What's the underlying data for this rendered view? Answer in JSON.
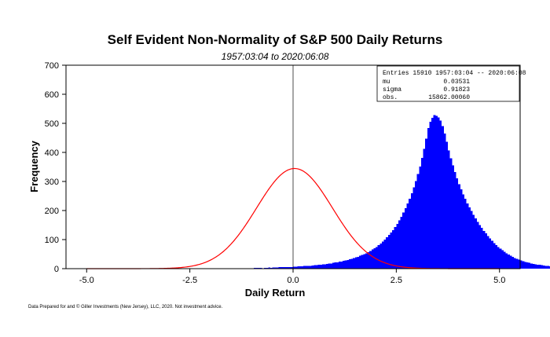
{
  "chart_data": {
    "type": "bar",
    "title": "Self Evident Non-Normality of S&P 500 Daily Returns",
    "subtitle": "1957:03:04 to 2020:06:08",
    "xlabel": "Daily Return",
    "ylabel": "Frequency",
    "xlim": [
      -5.5,
      5.5
    ],
    "ylim": [
      0,
      700
    ],
    "xticks": [
      -5.0,
      -2.5,
      0.0,
      2.5,
      5.0
    ],
    "xtick_labels": [
      "-5.0",
      "-2.5",
      "0.0",
      "2.5",
      "5.0"
    ],
    "yticks": [
      0,
      100,
      200,
      300,
      400,
      500,
      600,
      700
    ],
    "ytick_labels": [
      "0",
      "100",
      "200",
      "300",
      "400",
      "500",
      "600",
      "700"
    ],
    "bin_width": 0.05,
    "bin_start": -5.0,
    "counts": [
      0,
      0,
      1,
      0,
      0,
      0,
      0,
      0,
      0,
      1,
      0,
      0,
      0,
      0,
      0,
      0,
      0,
      0,
      0,
      0,
      1,
      0,
      0,
      0,
      0,
      0,
      0,
      0,
      0,
      0,
      1,
      0,
      0,
      0,
      0,
      0,
      0,
      0,
      0,
      0,
      0,
      1,
      0,
      0,
      0,
      0,
      0,
      0,
      0,
      0,
      0,
      0,
      0,
      0,
      1,
      0,
      0,
      0,
      0,
      1,
      1,
      0,
      1,
      1,
      1,
      0,
      1,
      0,
      1,
      1,
      0,
      1,
      1,
      2,
      2,
      1,
      2,
      1,
      2,
      2,
      2,
      3,
      3,
      3,
      3,
      2,
      3,
      3,
      4,
      3,
      4,
      4,
      4,
      5,
      5,
      5,
      6,
      5,
      6,
      6,
      7,
      7,
      8,
      8,
      8,
      9,
      9,
      10,
      10,
      11,
      12,
      12,
      13,
      14,
      15,
      15,
      16,
      17,
      18,
      20,
      21,
      22,
      24,
      25,
      27,
      28,
      30,
      32,
      34,
      36,
      39,
      41,
      44,
      47,
      50,
      53,
      57,
      61,
      66,
      70,
      75,
      81,
      87,
      93,
      100,
      108,
      116,
      124,
      133,
      143,
      154,
      166,
      179,
      193,
      208,
      224,
      241,
      260,
      280,
      302,
      326,
      352,
      381,
      412,
      447,
      484,
      506,
      519,
      528,
      526,
      520,
      510,
      491,
      465,
      436,
      407,
      380,
      356,
      333,
      311,
      291,
      273,
      256,
      240,
      225,
      211,
      198,
      185,
      173,
      161,
      150,
      140,
      130,
      121,
      112,
      104,
      96,
      88,
      81,
      75,
      69,
      63,
      58,
      53,
      48,
      44,
      40,
      37,
      34,
      31,
      28,
      26,
      23,
      21,
      20,
      18,
      16,
      15,
      14,
      13,
      12,
      11,
      10,
      9,
      8,
      8,
      7,
      7,
      6,
      6,
      5,
      5,
      5,
      4,
      4,
      4,
      3,
      3,
      3,
      3,
      3,
      2,
      2,
      2,
      2,
      2,
      2,
      2,
      2,
      1,
      1,
      1,
      1,
      1,
      1,
      1,
      1,
      1,
      1,
      1,
      0,
      1,
      1,
      0,
      1,
      1,
      0,
      1,
      0,
      1,
      0,
      0,
      1,
      0,
      1,
      0,
      0,
      0,
      1,
      0,
      0,
      0,
      1,
      0,
      0,
      0,
      0,
      1,
      0,
      0,
      0,
      0,
      0,
      1,
      0,
      0,
      0,
      0,
      0,
      0,
      0,
      1,
      0,
      0,
      0,
      0,
      0,
      0,
      0,
      0,
      0,
      0,
      0,
      0,
      0,
      0,
      0,
      0,
      0,
      0,
      0,
      0,
      0,
      0,
      0,
      0,
      0,
      0,
      0,
      0,
      0,
      0,
      0,
      0,
      0,
      0,
      0,
      0,
      0,
      0,
      0,
      0,
      0,
      0,
      0,
      0,
      0,
      0,
      0,
      0,
      0,
      0,
      0,
      0,
      0,
      0,
      0,
      0,
      0
    ],
    "series": [
      {
        "type": "histogram",
        "color": "#0000ff"
      },
      {
        "type": "line",
        "color": "#ff0000",
        "mu": 0.03531,
        "sigma": 0.91823,
        "obs": 15862.0006
      }
    ],
    "stats_box": {
      "line1": "Entries 15910 1957:03:04 -- 2020:06:08",
      "rows": [
        {
          "label": "mu",
          "value": "0.03531"
        },
        {
          "label": "sigma",
          "value": "0.91823"
        },
        {
          "label": "obs.",
          "value": "15862.00060"
        }
      ]
    },
    "footnote": "Data Prepared for and © Giller Investments (New Jersey), LLC, 2020. Not investment advice.",
    "grid": false,
    "vertical_marker_x": 0.0
  }
}
